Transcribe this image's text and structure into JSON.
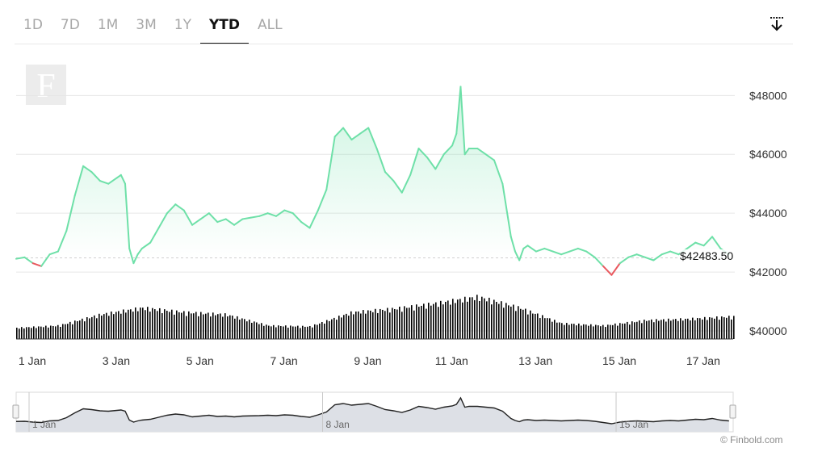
{
  "tabs": [
    {
      "label": "1D",
      "active": false
    },
    {
      "label": "7D",
      "active": false
    },
    {
      "label": "1M",
      "active": false
    },
    {
      "label": "3M",
      "active": false
    },
    {
      "label": "1Y",
      "active": false
    },
    {
      "label": "YTD",
      "active": true
    },
    {
      "label": "ALL",
      "active": false
    }
  ],
  "toolbar": {
    "download_icon": "download-icon"
  },
  "logo": {
    "letter": "F"
  },
  "current_price_label": "$42483.50",
  "copyright": "© Finbold.com",
  "colors": {
    "up": "#6ee0a8",
    "down": "#e9595f",
    "volume": "#000000",
    "nav_fill": "#dde0e6"
  },
  "chart_data": {
    "type": "area",
    "title": "",
    "xlabel": "",
    "ylabel": "",
    "x_ticks": [
      "1 Jan",
      "3 Jan",
      "5 Jan",
      "7 Jan",
      "9 Jan",
      "11 Jan",
      "13 Jan",
      "15 Jan",
      "17 Jan"
    ],
    "y_ticks": [
      "$40000",
      "$42000",
      "$44000",
      "$46000",
      "$48000"
    ],
    "ylim": [
      40000,
      48000
    ],
    "xlim_days": [
      1,
      18.1
    ],
    "baseline": 42483.5,
    "series": [
      {
        "x": [
          1.0,
          1.2,
          1.4,
          1.6,
          1.8,
          2.0,
          2.2,
          2.4,
          2.6,
          2.8,
          3.0,
          3.2,
          3.4,
          3.5,
          3.6,
          3.7,
          3.8,
          3.9,
          4.0,
          4.2,
          4.4,
          4.6,
          4.8,
          5.0,
          5.2,
          5.4,
          5.6,
          5.8,
          6.0,
          6.2,
          6.4,
          6.6,
          6.8,
          7.0,
          7.2,
          7.4,
          7.6,
          7.8,
          8.0,
          8.2,
          8.4,
          8.6,
          8.8,
          9.0,
          9.2,
          9.4,
          9.6,
          9.8,
          10.0,
          10.2,
          10.4,
          10.6,
          10.8,
          11.0,
          11.2,
          11.4,
          11.5,
          11.6,
          11.7,
          11.8,
          12.0,
          12.2,
          12.4,
          12.6,
          12.8,
          12.9,
          13.0,
          13.1,
          13.2,
          13.4,
          13.6,
          13.8,
          14.0,
          14.2,
          14.4,
          14.6,
          14.8,
          15.0,
          15.2,
          15.4,
          15.6,
          15.8,
          16.0,
          16.2,
          16.4,
          16.6,
          16.8,
          17.0,
          17.2,
          17.4,
          17.6,
          17.8,
          18.0
        ],
        "values": [
          42450,
          42500,
          42300,
          42200,
          42600,
          42700,
          43400,
          44600,
          45600,
          45400,
          45100,
          45000,
          45200,
          45300,
          45000,
          42800,
          42300,
          42600,
          42800,
          43000,
          43500,
          44000,
          44300,
          44100,
          43600,
          43800,
          44000,
          43700,
          43800,
          43600,
          43800,
          43850,
          43900,
          44000,
          43900,
          44100,
          44000,
          43700,
          43500,
          44100,
          44800,
          46600,
          46900,
          46500,
          46700,
          46900,
          46200,
          45400,
          45100,
          44700,
          45300,
          46200,
          45900,
          45500,
          46000,
          46300,
          46700,
          48300,
          46000,
          46200,
          46200,
          46000,
          45800,
          45000,
          43200,
          42700,
          42400,
          42800,
          42900,
          42700,
          42800,
          42700,
          42600,
          42700,
          42800,
          42700,
          42500,
          42200,
          41900,
          42300,
          42500,
          42600,
          42500,
          42400,
          42600,
          42700,
          42600,
          42800,
          43000,
          42900,
          43200,
          42800,
          42600
        ]
      }
    ],
    "volume": [
      {
        "x": [
          1,
          2,
          3,
          4,
          5,
          6,
          7,
          8,
          9,
          10,
          11,
          12,
          13,
          14,
          15,
          16,
          17,
          18
        ],
        "values": [
          0.25,
          0.3,
          0.55,
          0.7,
          0.6,
          0.55,
          0.3,
          0.28,
          0.6,
          0.68,
          0.8,
          0.95,
          0.7,
          0.35,
          0.3,
          0.42,
          0.45,
          0.5
        ]
      }
    ],
    "navigator": {
      "x_ticks": [
        "1 Jan",
        "8 Jan",
        "15 Jan"
      ]
    }
  }
}
